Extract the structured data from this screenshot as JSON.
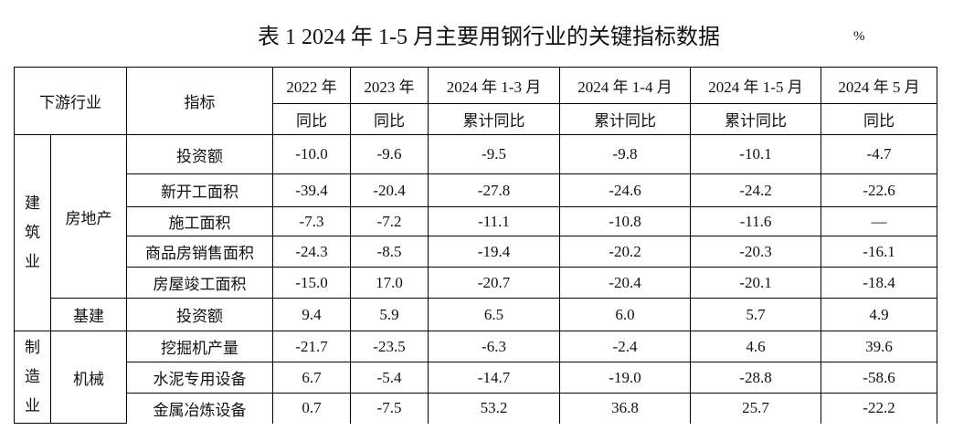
{
  "title": "表 1 2024 年 1-5 月主要用钢行业的关键指标数据",
  "unit": "%",
  "table": {
    "header": {
      "industry": "下游行业",
      "indicator": "指标",
      "periods": [
        {
          "label": "2022 年",
          "sub": "同比"
        },
        {
          "label": "2023 年",
          "sub": "同比"
        },
        {
          "label": "2024 年 1-3 月",
          "sub": "累计同比"
        },
        {
          "label": "2024 年 1-4 月",
          "sub": "累计同比"
        },
        {
          "label": "2024 年 1-5 月",
          "sub": "累计同比"
        },
        {
          "label": "2024 年 5 月",
          "sub": "同比"
        }
      ]
    },
    "groups": [
      {
        "name": "建筑业",
        "subgroups": [
          {
            "name": "房地产",
            "rows": [
              {
                "indicator": "投资额",
                "values": [
                  "-10.0",
                  "-9.6",
                  "-9.5",
                  "-9.8",
                  "-10.1",
                  "-4.7"
                ]
              },
              {
                "indicator": "新开工面积",
                "values": [
                  "-39.4",
                  "-20.4",
                  "-27.8",
                  "-24.6",
                  "-24.2",
                  "-22.6"
                ]
              },
              {
                "indicator": "施工面积",
                "values": [
                  "-7.3",
                  "-7.2",
                  "-11.1",
                  "-10.8",
                  "-11.6",
                  "—"
                ]
              },
              {
                "indicator": "商品房销售面积",
                "values": [
                  "-24.3",
                  "-8.5",
                  "-19.4",
                  "-20.2",
                  "-20.3",
                  "-16.1"
                ]
              },
              {
                "indicator": "房屋竣工面积",
                "values": [
                  "-15.0",
                  "17.0",
                  "-20.7",
                  "-20.4",
                  "-20.1",
                  "-18.4"
                ]
              }
            ]
          },
          {
            "name": "基建",
            "rows": [
              {
                "indicator": "投资额",
                "values": [
                  "9.4",
                  "5.9",
                  "6.5",
                  "6.0",
                  "5.7",
                  "4.9"
                ]
              }
            ]
          }
        ]
      },
      {
        "name": "制造业",
        "subgroups": [
          {
            "name": "机械",
            "rows": [
              {
                "indicator": "挖掘机产量",
                "values": [
                  "-21.7",
                  "-23.5",
                  "-6.3",
                  "-2.4",
                  "4.6",
                  "39.6"
                ]
              },
              {
                "indicator": "水泥专用设备",
                "values": [
                  "6.7",
                  "-5.4",
                  "-14.7",
                  "-19.0",
                  "-28.8",
                  "-58.6"
                ]
              },
              {
                "indicator": "金属冶炼设备",
                "values": [
                  "0.7",
                  "-7.5",
                  "53.2",
                  "36.8",
                  "25.7",
                  "-22.2"
                ]
              }
            ]
          }
        ]
      }
    ]
  }
}
